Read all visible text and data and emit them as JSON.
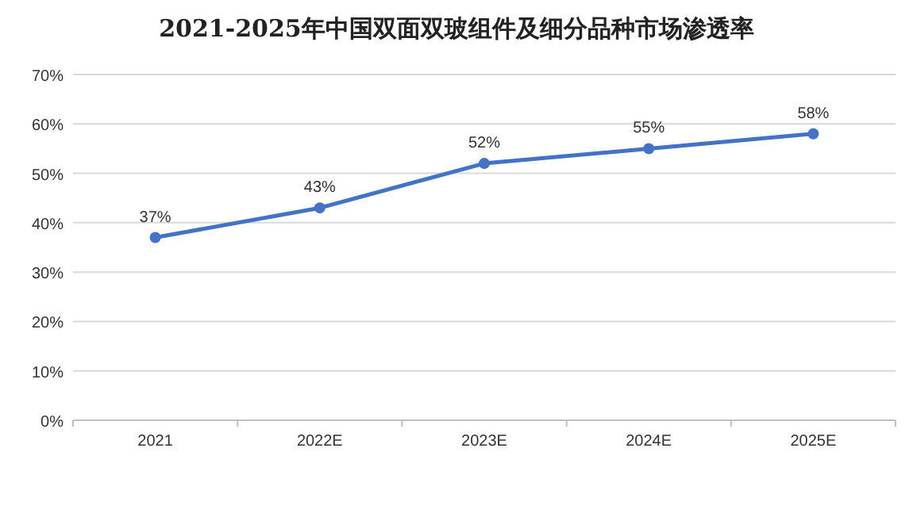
{
  "chart_data": {
    "type": "line",
    "title": "2021-2025年中国双面双玻组件及细分品种市场渗透率",
    "categories": [
      "2021",
      "2022E",
      "2023E",
      "2024E",
      "2025E"
    ],
    "series": [
      {
        "color": "#4472c4",
        "values": [
          37,
          43,
          52,
          55,
          58
        ],
        "value_labels": [
          "37%",
          "43%",
          "52%",
          "55%",
          "58%"
        ]
      }
    ],
    "ylim": [
      0,
      70
    ],
    "yticks": [
      {
        "value": 0,
        "label": "0%"
      },
      {
        "value": 10,
        "label": "10%"
      },
      {
        "value": 20,
        "label": "20%"
      },
      {
        "value": 30,
        "label": "30%"
      },
      {
        "value": 40,
        "label": "40%"
      },
      {
        "value": 50,
        "label": "50%"
      },
      {
        "value": 60,
        "label": "60%"
      },
      {
        "value": 70,
        "label": "70%"
      }
    ],
    "grid": "y",
    "marker": "circle",
    "line_style": "solid"
  }
}
